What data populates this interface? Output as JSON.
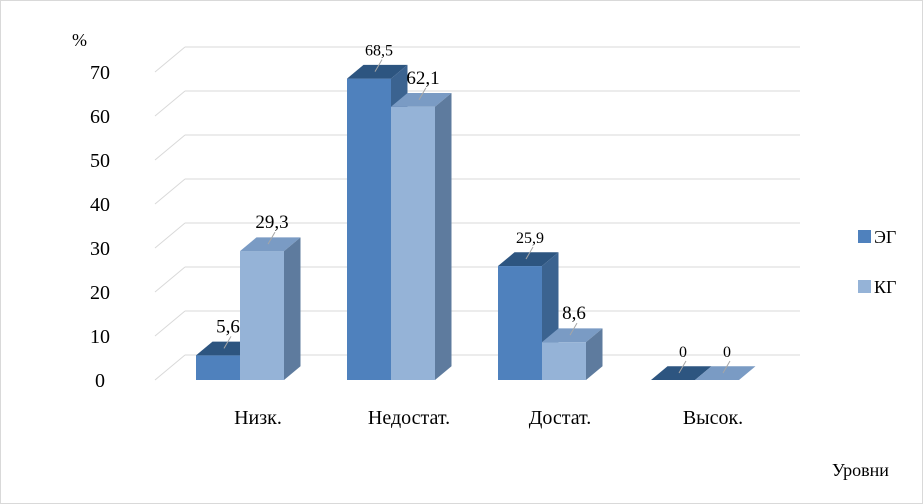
{
  "chart_data": {
    "type": "bar",
    "categories": [
      "Низк.",
      "Недостат.",
      "Достат.",
      "Высок."
    ],
    "series": [
      {
        "name": "ЭГ",
        "values": [
          5.6,
          68.5,
          25.9,
          0
        ],
        "labels": [
          "5,6",
          "68,5",
          "25,9",
          "0"
        ]
      },
      {
        "name": "КГ",
        "values": [
          29.3,
          62.1,
          8.6,
          0
        ],
        "labels": [
          "29,3",
          "62,1",
          "8,6",
          "0"
        ]
      }
    ],
    "ylabel": "%",
    "xlabel": "Уровни",
    "ylim": [
      0,
      70
    ],
    "yticks": [
      "0",
      "10",
      "20",
      "30",
      "40",
      "50",
      "60",
      "70"
    ],
    "grid": true,
    "legend_position": "right",
    "colors": {
      "ЭГ": "#4f81bd",
      "КГ": "#95b3d7",
      "grid": "#d9d9d9",
      "depth_side_eg": "#3b6390",
      "depth_top_eg": "#2d5580",
      "depth_side_kg": "#5e7b9e",
      "depth_top_kg": "#7a9bc4"
    }
  }
}
